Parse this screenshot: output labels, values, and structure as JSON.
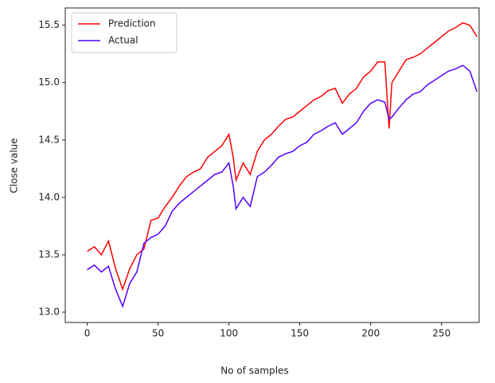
{
  "chart_data": {
    "type": "line",
    "xlabel": "No of samples",
    "ylabel": "Close value",
    "x": [
      0,
      5,
      10,
      15,
      20,
      25,
      30,
      35,
      40,
      45,
      50,
      55,
      60,
      65,
      70,
      75,
      80,
      85,
      90,
      95,
      100,
      103,
      105,
      110,
      115,
      120,
      125,
      130,
      135,
      140,
      145,
      150,
      155,
      160,
      165,
      170,
      175,
      180,
      185,
      190,
      195,
      200,
      205,
      210,
      213,
      215,
      220,
      225,
      230,
      235,
      240,
      245,
      250,
      255,
      260,
      265,
      270,
      275
    ],
    "series": [
      {
        "name": "Prediction",
        "color": "#ff0000",
        "values": [
          13.53,
          13.57,
          13.5,
          13.62,
          13.38,
          13.2,
          13.38,
          13.5,
          13.55,
          13.8,
          13.82,
          13.92,
          14.0,
          14.1,
          14.18,
          14.22,
          14.25,
          14.35,
          14.4,
          14.45,
          14.55,
          14.35,
          14.15,
          14.3,
          14.2,
          14.4,
          14.5,
          14.55,
          14.62,
          14.68,
          14.7,
          14.75,
          14.8,
          14.85,
          14.88,
          14.93,
          14.95,
          14.82,
          14.9,
          14.95,
          15.05,
          15.1,
          15.18,
          15.18,
          14.6,
          15.0,
          15.1,
          15.2,
          15.22,
          15.25,
          15.3,
          15.35,
          15.4,
          15.45,
          15.48,
          15.52,
          15.5,
          15.4
        ]
      },
      {
        "name": "Actual",
        "color": "#5500ff",
        "values": [
          13.37,
          13.41,
          13.35,
          13.4,
          13.2,
          13.05,
          13.25,
          13.35,
          13.6,
          13.65,
          13.68,
          13.75,
          13.88,
          13.95,
          14.0,
          14.05,
          14.1,
          14.15,
          14.2,
          14.22,
          14.3,
          14.1,
          13.9,
          14.0,
          13.92,
          14.18,
          14.22,
          14.28,
          14.35,
          14.38,
          14.4,
          14.45,
          14.48,
          14.55,
          14.58,
          14.62,
          14.65,
          14.55,
          14.6,
          14.65,
          14.75,
          14.82,
          14.85,
          14.83,
          14.68,
          14.7,
          14.78,
          14.85,
          14.9,
          14.92,
          14.98,
          15.02,
          15.06,
          15.1,
          15.12,
          15.15,
          15.1,
          14.92
        ]
      }
    ],
    "xlim": [
      -15.5,
      276.5
    ],
    "ylim": [
      12.91,
      15.65
    ],
    "xticks": [
      0,
      50,
      100,
      150,
      200,
      250
    ],
    "yticks": [
      {
        "value": 13.0,
        "label": "13.0"
      },
      13.5,
      {
        "value": 14.0,
        "label": "14.0"
      },
      14.5,
      {
        "value": 15.0,
        "label": "15.0"
      },
      15.5
    ],
    "legend": "upper left",
    "grid": false
  }
}
